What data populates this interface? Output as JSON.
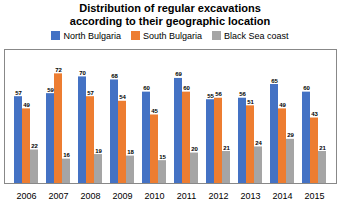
{
  "chart_data": {
    "type": "bar",
    "title": "Distribution of regular excavations\naccording to their geographic location",
    "categories": [
      "2006",
      "2007",
      "2008",
      "2009",
      "2010",
      "2011",
      "2012",
      "2013",
      "2014",
      "2015"
    ],
    "series": [
      {
        "name": "North Bulgaria",
        "color": "#4472C4",
        "values": [
          57,
          59,
          70,
          68,
          60,
          69,
          55,
          56,
          65,
          60
        ]
      },
      {
        "name": "South Bulgaria",
        "color": "#ED7D31",
        "values": [
          49,
          72,
          57,
          54,
          45,
          60,
          56,
          51,
          49,
          43
        ]
      },
      {
        "name": "Black Sea coast",
        "color": "#A5A5A5",
        "values": [
          22,
          16,
          19,
          18,
          15,
          20,
          21,
          24,
          29,
          21
        ]
      }
    ],
    "ylim": [
      0,
      88
    ],
    "yticks": [],
    "grid": false,
    "legend": "top",
    "data_labels": true,
    "tick_labels": "x"
  }
}
